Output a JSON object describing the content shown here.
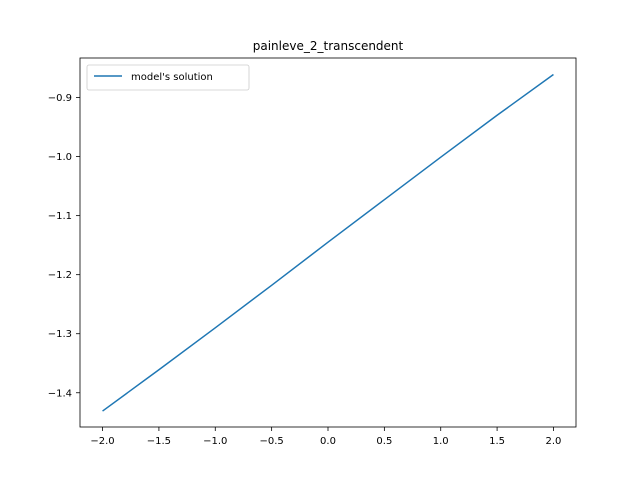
{
  "chart_data": {
    "type": "line",
    "title": "painleve_2_transcendent",
    "xlabel": "",
    "ylabel": "",
    "xlim": [
      -2.2,
      2.2
    ],
    "ylim": [
      -1.458,
      -0.833
    ],
    "xticks": [
      -2.0,
      -1.5,
      -1.0,
      -0.5,
      0.0,
      0.5,
      1.0,
      1.5,
      2.0
    ],
    "xtick_labels": [
      "−2.0",
      "−1.5",
      "−1.0",
      "−0.5",
      "0.0",
      "0.5",
      "1.0",
      "1.5",
      "2.0"
    ],
    "yticks": [
      -1.4,
      -1.3,
      -1.2,
      -1.1,
      -1.0,
      -0.9
    ],
    "ytick_labels": [
      "−1.4",
      "−1.3",
      "−1.2",
      "−1.1",
      "−1.0",
      "−0.9"
    ],
    "grid": false,
    "legend_position": "top-left",
    "series": [
      {
        "name": "model's solution",
        "color": "#1f77b4",
        "x": [
          -2.0,
          -1.5,
          -1.0,
          -0.5,
          0.0,
          0.5,
          1.0,
          1.5,
          2.0
        ],
        "y": [
          -1.431,
          -1.361,
          -1.29,
          -1.218,
          -1.145,
          -1.073,
          -1.001,
          -0.93,
          -0.861
        ]
      }
    ]
  }
}
